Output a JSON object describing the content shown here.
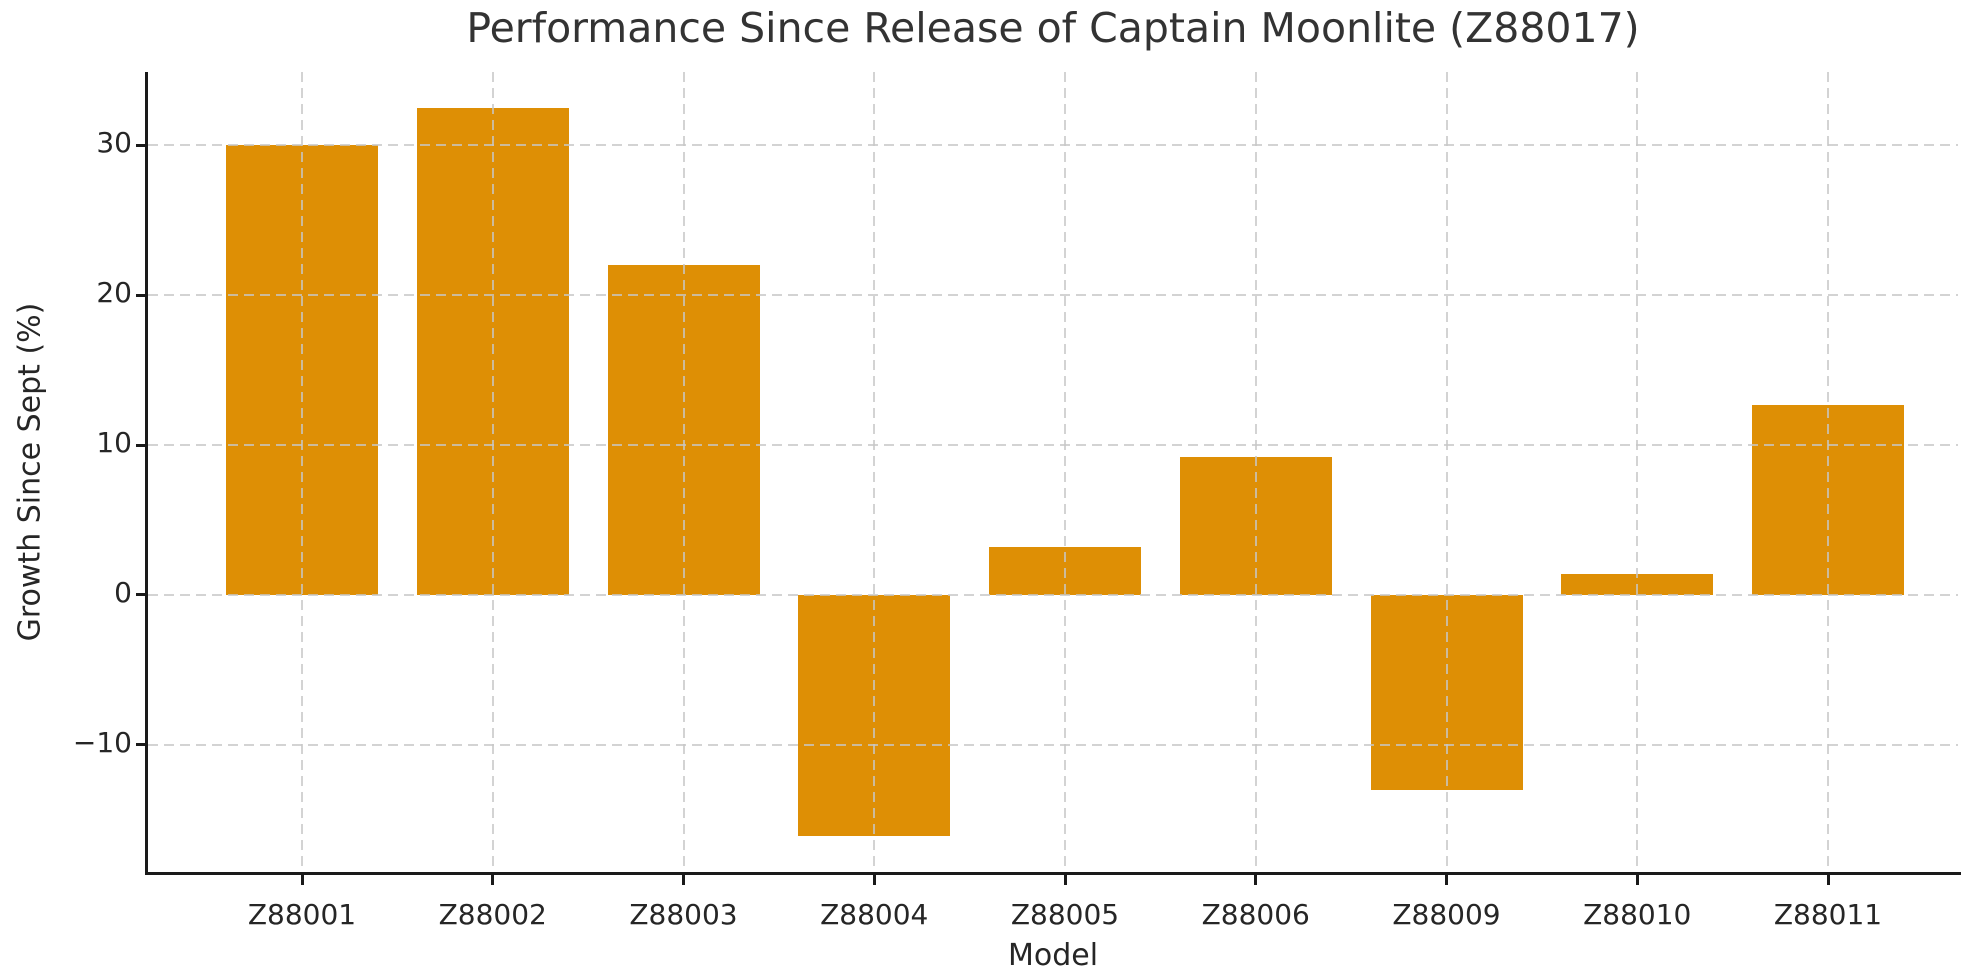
{
  "chart_data": {
    "type": "bar",
    "title": "Performance Since Release of Captain Moonlite (Z88017)",
    "xlabel": "Model",
    "ylabel": "Growth Since Sept (%)",
    "categories": [
      "Z88001",
      "Z88002",
      "Z88003",
      "Z88004",
      "Z88005",
      "Z88006",
      "Z88009",
      "Z88010",
      "Z88011"
    ],
    "values": [
      30.0,
      32.5,
      22.0,
      -16.1,
      3.2,
      9.2,
      -13.0,
      1.4,
      12.7
    ],
    "bar_color": "#DE8F05",
    "ylim": [
      -18.5,
      34.9
    ],
    "yticks": [
      -10,
      0,
      10,
      20,
      30
    ],
    "grid": true,
    "grid_style": "dashed",
    "grid_over_bars": true,
    "legend": null,
    "spines": [
      "left",
      "bottom"
    ],
    "text_color": "#262626",
    "spine_color": "#1a1a1a"
  }
}
